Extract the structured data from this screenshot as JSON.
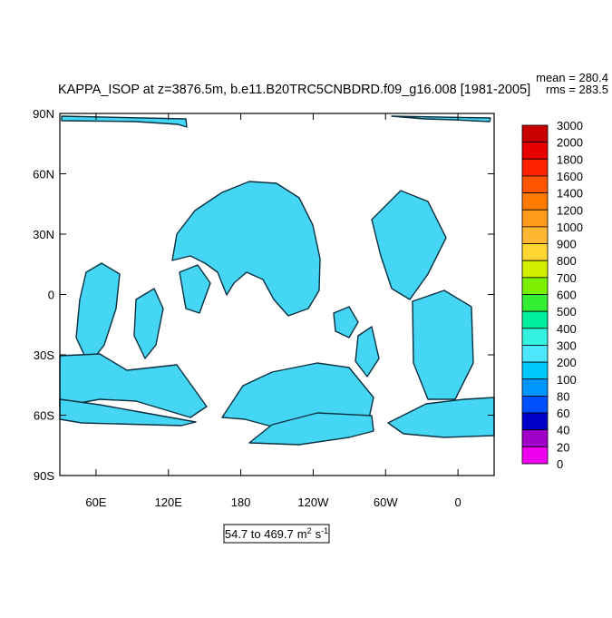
{
  "map": {
    "title": "KAPPA_ISOP at z=3876.5m, b.e11.B20TRC5CNBDRD.f09_g16.008 [1981-2005]",
    "mean_label": "mean = 280.4",
    "rms_label": "rms = 283.5",
    "lat_range": [
      -90,
      90
    ],
    "lon_range": [
      30,
      390
    ],
    "lat_ticks": [
      {
        "value": 90,
        "label": "90N"
      },
      {
        "value": 60,
        "label": "60N"
      },
      {
        "value": 30,
        "label": "30N"
      },
      0,
      {
        "value": -30,
        "label": "30S"
      },
      {
        "value": -60,
        "label": "60S"
      },
      {
        "value": -90,
        "label": "90S"
      }
    ],
    "lon_ticks": [
      {
        "value": 60,
        "label": "60E"
      },
      {
        "value": 120,
        "label": "120E"
      },
      180,
      {
        "value": 240,
        "label": "120W"
      },
      {
        "value": 300,
        "label": "60W"
      },
      {
        "value": 360,
        "label": "0"
      }
    ],
    "colorbar": {
      "levels": [
        3000,
        2000,
        1800,
        1600,
        1400,
        1200,
        1000,
        900,
        800,
        700,
        600,
        500,
        400,
        300,
        200,
        100,
        80,
        60,
        40,
        20,
        0
      ],
      "colors": [
        "#c80000",
        "#e60000",
        "#ff2200",
        "#ff5500",
        "#ff7a00",
        "#ff9a1a",
        "#ffb733",
        "#ffd633",
        "#d4ee00",
        "#7cf000",
        "#33ee33",
        "#00eea0",
        "#33f2e0",
        "#4de8ff",
        "#00c8ff",
        "#0096ff",
        "#0050ff",
        "#0000c8",
        "#a000c8",
        "#f000f0"
      ],
      "zero_color": "#c8c8c8"
    },
    "range_label": {
      "text": "54.7 to 469.7",
      "units": [
        {
          "base": "m",
          "exp": "2"
        },
        {
          "base": "s",
          "exp": "-1"
        }
      ]
    },
    "land_color": "#44d6f4"
  }
}
